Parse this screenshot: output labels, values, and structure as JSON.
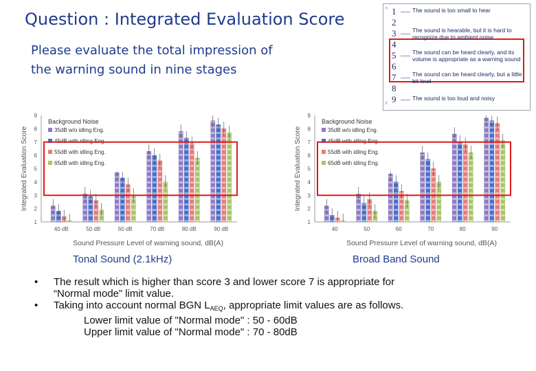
{
  "title": "Question : Integrated Evaluation Score",
  "subtitle_line1": "Please evaluate the total impression of",
  "subtitle_line2": "the warning sound in nine stages",
  "scale": {
    "numbers": [
      "1",
      "2",
      "3",
      "4",
      "5",
      "6",
      "7",
      "8",
      "9"
    ],
    "descriptions": [
      {
        "at": "1",
        "text": "The sound is too small to hear"
      },
      {
        "at": "3",
        "text": "The sound is hearable, but it is hard to recognize due to ambient noise"
      },
      {
        "at": "5",
        "text": "The sound can be heard clearly, and its volume is appropriate as a warning sound"
      },
      {
        "at": "7",
        "text": "The sound can be heard clearly, but a little bit loud"
      },
      {
        "at": "9",
        "text": "The sound is too loud and noisy"
      }
    ],
    "arrow_up": "^",
    "arrow_down": "v"
  },
  "chart_data": [
    {
      "type": "bar",
      "caption": "Tonal Sound (2.1kHz)",
      "ylabel": "Integrated Evaluation Score",
      "xlabel": "Sound Pressure Level of warning sound, dB(A)",
      "categories": [
        "40 dB",
        "50 dB",
        "60 dB",
        "70 dB",
        "80 dB",
        "90 dB"
      ],
      "ylim": [
        1,
        9
      ],
      "yticks": [
        "1",
        "2",
        "3",
        "4",
        "5",
        "6",
        "7",
        "8",
        "9"
      ],
      "highlight_range": [
        3,
        7
      ],
      "legend_title": "Background Noise",
      "series": [
        {
          "name": "35dB w/o idling Eng.",
          "color": "#8e7cc3",
          "values": [
            2.2,
            3.1,
            4.7,
            6.3,
            7.8,
            8.6
          ]
        },
        {
          "name": "45dB with idling Eng.",
          "color": "#4a6fc9",
          "values": [
            1.8,
            2.9,
            4.3,
            6.0,
            7.3,
            8.3
          ]
        },
        {
          "name": "55dB with idling Eng.",
          "color": "#e77b7b",
          "values": [
            1.4,
            2.6,
            3.8,
            5.6,
            6.9,
            8.0
          ]
        },
        {
          "name": "65dB with idling Eng.",
          "color": "#a9c46a",
          "values": [
            1.1,
            1.9,
            3.0,
            4.0,
            5.8,
            7.7
          ]
        }
      ]
    },
    {
      "type": "bar",
      "caption": "Broad Band Sound",
      "ylabel": "Integrated Evaluation Score",
      "xlabel": "Sound Pressure Level of warning sound, dB(A)",
      "categories": [
        "40",
        "50",
        "60",
        "70",
        "80",
        "90"
      ],
      "ylim": [
        1,
        9
      ],
      "yticks": [
        "1",
        "2",
        "3",
        "4",
        "5",
        "6",
        "7",
        "8",
        "9"
      ],
      "highlight_range": [
        3,
        7
      ],
      "legend_title": "Background Noise",
      "series": [
        {
          "name": "35dB w/o idling Eng.",
          "color": "#8e7cc3",
          "values": [
            2.2,
            3.1,
            4.6,
            6.2,
            7.6,
            8.8
          ]
        },
        {
          "name": "45dB with idling Eng.",
          "color": "#4a6fc9",
          "values": [
            1.5,
            2.4,
            4.0,
            5.7,
            7.0,
            8.6
          ]
        },
        {
          "name": "55dB with idling Eng.",
          "color": "#e77b7b",
          "values": [
            1.3,
            2.7,
            3.3,
            5.0,
            6.8,
            8.4
          ]
        },
        {
          "name": "65dB with idling Eng.",
          "color": "#a9c46a",
          "values": [
            1.1,
            1.8,
            2.6,
            4.0,
            6.2,
            7.1
          ]
        }
      ]
    }
  ],
  "bullets": {
    "symbol": "•",
    "line1": "The result which is higher than score 3 and lower score 7 is appropriate for",
    "line1b": "“Normal mode” limit value.",
    "line2_pre": "Taking into account normal BGN L",
    "line2_sub": "AEQ",
    "line2_post": ", appropriate limit values are as follows.",
    "lower": "Lower limit value  of \"Normal mode\" : 50 - 60dB",
    "upper": "Upper limit value  of \"Normal mode\" : 70 - 80dB"
  }
}
